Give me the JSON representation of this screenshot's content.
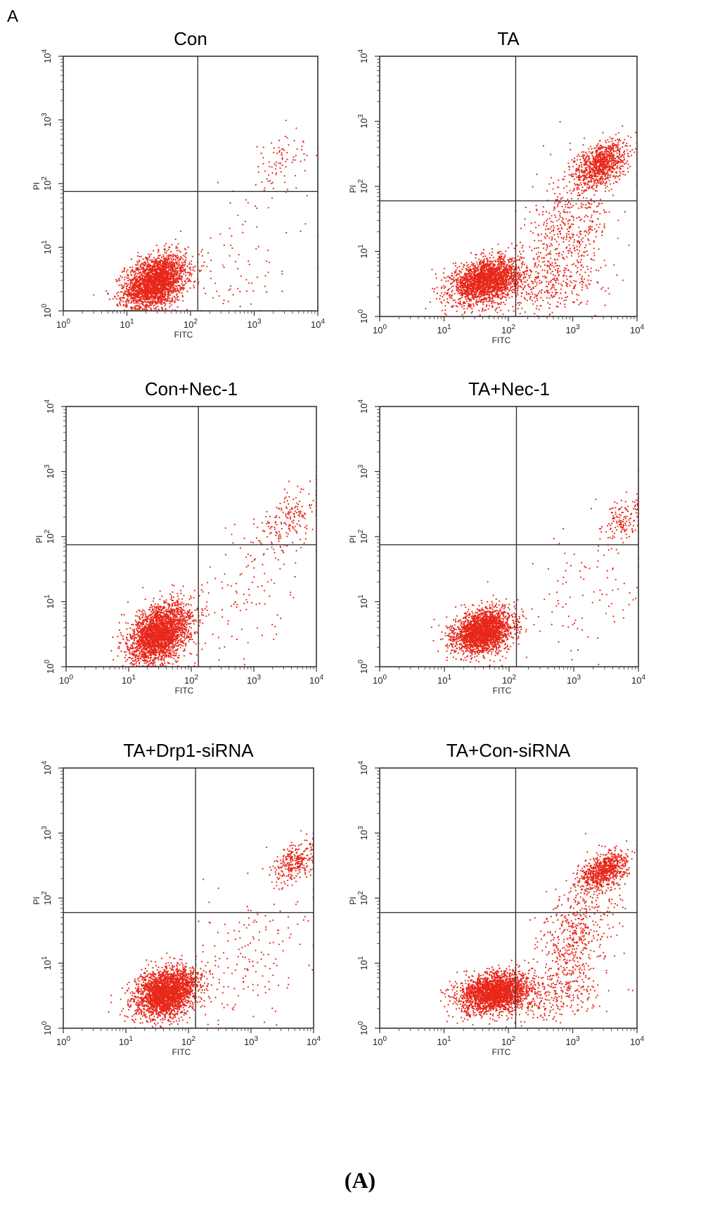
{
  "figure": {
    "panel_letter": "A",
    "caption": "(A)",
    "colors": {
      "dots": "#e8271a",
      "frame": "#333333"
    }
  },
  "chart_data": [
    {
      "type": "scatter",
      "title": "Con",
      "xlabel": "FITC",
      "ylabel": "PI",
      "xscale": "log",
      "yscale": "log",
      "xlim": [
        1,
        10000
      ],
      "ylim": [
        1,
        10000
      ],
      "xticks": [
        "10^0",
        "10^1",
        "10^2",
        "10^3",
        "10^4"
      ],
      "yticks": [
        "10^0",
        "10^1",
        "10^2",
        "10^3",
        "10^4"
      ],
      "gate": {
        "x": 130,
        "y": 75
      },
      "clusters": [
        {
          "cx": 28,
          "cy": 2.8,
          "sx": 0.24,
          "sy": 0.2,
          "n": 2600,
          "tilt": 0.3
        },
        {
          "cx": 2500,
          "cy": 200,
          "sx": 0.35,
          "sy": 0.25,
          "n": 90,
          "tilt": 0.5
        },
        {
          "cx": 600,
          "cy": 5,
          "sx": 0.55,
          "sy": 0.4,
          "n": 80,
          "tilt": 0.2
        }
      ]
    },
    {
      "type": "scatter",
      "title": "TA",
      "xlabel": "FITC",
      "ylabel": "PI",
      "xscale": "log",
      "yscale": "log",
      "xlim": [
        1,
        10000
      ],
      "ylim": [
        1,
        10000
      ],
      "xticks": [
        "10^0",
        "10^1",
        "10^2",
        "10^3",
        "10^4"
      ],
      "yticks": [
        "10^0",
        "10^1",
        "10^2",
        "10^3",
        "10^4"
      ],
      "gate": {
        "x": 130,
        "y": 60
      },
      "clusters": [
        {
          "cx": 45,
          "cy": 3.5,
          "sx": 0.26,
          "sy": 0.16,
          "n": 2200,
          "tilt": 0.2
        },
        {
          "cx": 2700,
          "cy": 220,
          "sx": 0.2,
          "sy": 0.16,
          "n": 900,
          "tilt": 0.35
        },
        {
          "cx": 900,
          "cy": 25,
          "sx": 0.35,
          "sy": 0.45,
          "n": 500,
          "tilt": 0.7
        },
        {
          "cx": 400,
          "cy": 3,
          "sx": 0.45,
          "sy": 0.22,
          "n": 350,
          "tilt": 0.1
        }
      ]
    },
    {
      "type": "scatter",
      "title": "Con+Nec-1",
      "xlabel": "FITC",
      "ylabel": "PI",
      "xscale": "log",
      "yscale": "log",
      "xlim": [
        1,
        10000
      ],
      "ylim": [
        1,
        10000
      ],
      "xticks": [
        "10^0",
        "10^1",
        "10^2",
        "10^3",
        "10^4"
      ],
      "yticks": [
        "10^0",
        "10^1",
        "10^2",
        "10^3",
        "10^4"
      ],
      "gate": {
        "x": 130,
        "y": 75
      },
      "clusters": [
        {
          "cx": 32,
          "cy": 3.2,
          "sx": 0.24,
          "sy": 0.21,
          "n": 2600,
          "tilt": 0.35
        },
        {
          "cx": 3500,
          "cy": 180,
          "sx": 0.3,
          "sy": 0.22,
          "n": 200,
          "tilt": 0.6
        },
        {
          "cx": 700,
          "cy": 10,
          "sx": 0.5,
          "sy": 0.55,
          "n": 120,
          "tilt": 0.6
        }
      ]
    },
    {
      "type": "scatter",
      "title": "TA+Nec-1",
      "xlabel": "FITC",
      "ylabel": "PI",
      "xscale": "log",
      "yscale": "log",
      "xlim": [
        1,
        10000
      ],
      "ylim": [
        1,
        10000
      ],
      "xticks": [
        "10^0",
        "10^1",
        "10^2",
        "10^3",
        "10^4"
      ],
      "yticks": [
        "10^0",
        "10^1",
        "10^2",
        "10^3",
        "10^4"
      ],
      "gate": {
        "x": 130,
        "y": 75
      },
      "clusters": [
        {
          "cx": 40,
          "cy": 3.5,
          "sx": 0.22,
          "sy": 0.16,
          "n": 2400,
          "tilt": 0.2
        },
        {
          "cx": 6000,
          "cy": 180,
          "sx": 0.18,
          "sy": 0.18,
          "n": 150,
          "tilt": 0.5
        },
        {
          "cx": 1200,
          "cy": 12,
          "sx": 0.55,
          "sy": 0.55,
          "n": 110,
          "tilt": 0.4
        }
      ]
    },
    {
      "type": "scatter",
      "title": "TA+Drp1-siRNA",
      "xlabel": "FITC",
      "ylabel": "PI",
      "xscale": "log",
      "yscale": "log",
      "xlim": [
        1,
        10000
      ],
      "ylim": [
        1,
        10000
      ],
      "xticks": [
        "10^0",
        "10^1",
        "10^2",
        "10^3",
        "10^4"
      ],
      "yticks": [
        "10^0",
        "10^1",
        "10^2",
        "10^3",
        "10^4"
      ],
      "gate": {
        "x": 130,
        "y": 60
      },
      "clusters": [
        {
          "cx": 45,
          "cy": 3.5,
          "sx": 0.25,
          "sy": 0.18,
          "n": 2600,
          "tilt": 0.25
        },
        {
          "cx": 5000,
          "cy": 350,
          "sx": 0.18,
          "sy": 0.15,
          "n": 280,
          "tilt": 0.4
        },
        {
          "cx": 1200,
          "cy": 15,
          "sx": 0.5,
          "sy": 0.55,
          "n": 180,
          "tilt": 0.5
        }
      ]
    },
    {
      "type": "scatter",
      "title": "TA+Con-siRNA",
      "xlabel": "FITC",
      "ylabel": "PI",
      "xscale": "log",
      "yscale": "log",
      "xlim": [
        1,
        10000
      ],
      "ylim": [
        1,
        10000
      ],
      "xticks": [
        "10^0",
        "10^1",
        "10^2",
        "10^3",
        "10^4"
      ],
      "yticks": [
        "10^0",
        "10^1",
        "10^2",
        "10^3",
        "10^4"
      ],
      "gate": {
        "x": 130,
        "y": 60
      },
      "clusters": [
        {
          "cx": 60,
          "cy": 3.5,
          "sx": 0.27,
          "sy": 0.15,
          "n": 2400,
          "tilt": 0.15
        },
        {
          "cx": 3000,
          "cy": 250,
          "sx": 0.18,
          "sy": 0.13,
          "n": 750,
          "tilt": 0.3
        },
        {
          "cx": 1100,
          "cy": 25,
          "sx": 0.3,
          "sy": 0.45,
          "n": 550,
          "tilt": 0.8
        },
        {
          "cx": 500,
          "cy": 3,
          "sx": 0.4,
          "sy": 0.2,
          "n": 250,
          "tilt": 0.1
        }
      ]
    }
  ]
}
